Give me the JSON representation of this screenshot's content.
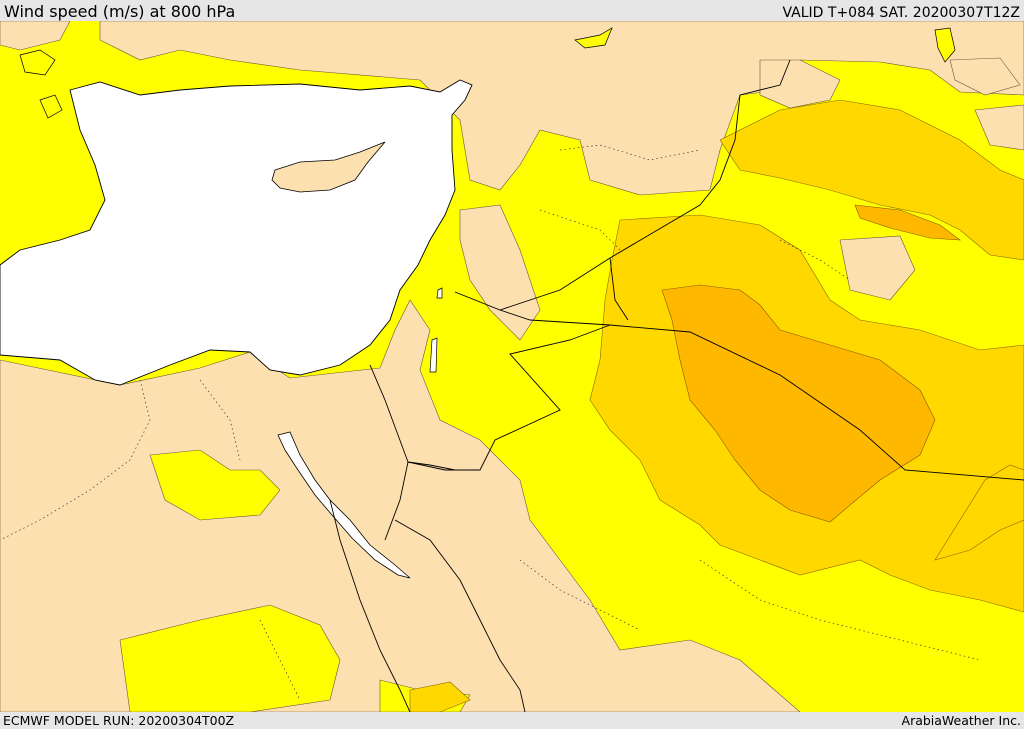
{
  "header": {
    "title": "Wind speed (m/s) at 800 hPa",
    "valid": "VALID T+084 SAT. 20200307T12Z"
  },
  "footer": {
    "model_run": "ECMWF MODEL RUN: 20200304T00Z",
    "credit": "ArabiaWeather Inc."
  },
  "map": {
    "region": "Eastern Mediterranean and Middle East",
    "field": "wind speed",
    "level": "800 hPa",
    "colors": {
      "land_calm": "#fde0b0",
      "wind_low": "#ffff00",
      "wind_moderate": "#ffd800",
      "wind_strong": "#ffb800",
      "sea": "#ffffff",
      "coastline": "#000000"
    }
  }
}
